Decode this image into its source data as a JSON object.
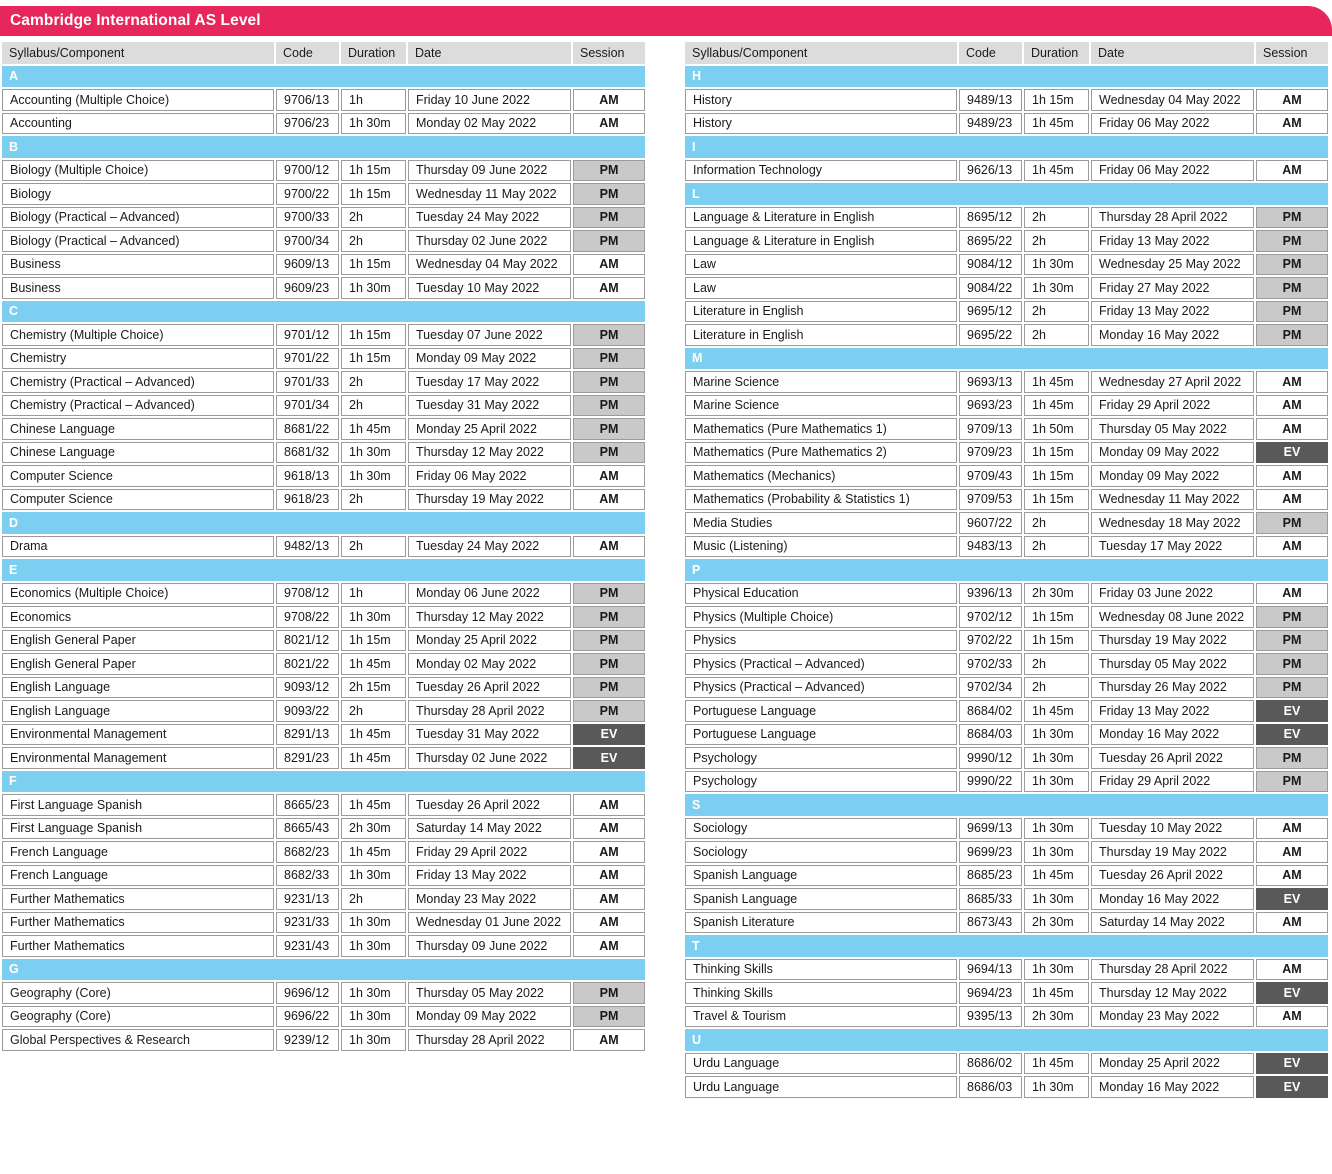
{
  "title": "Cambridge International AS Level",
  "columns": [
    "Syllabus/Component",
    "Code",
    "Duration",
    "Date",
    "Session"
  ],
  "colors": {
    "banner_pink": "#e7275b",
    "section_blue": "#7ccff1",
    "header_gray": "#dcdcdc",
    "pm_gray": "#c9c9c9",
    "ev_dark": "#595959",
    "border_gray": "#9b9b9b",
    "text": "#1a1a1a"
  },
  "left_table": {
    "sections": [
      {
        "letter": "A",
        "rows": [
          [
            "Accounting (Multiple Choice)",
            "9706/13",
            "1h",
            "Friday 10 June 2022",
            "AM"
          ],
          [
            "Accounting",
            "9706/23",
            "1h 30m",
            "Monday 02 May 2022",
            "AM"
          ]
        ]
      },
      {
        "letter": "B",
        "rows": [
          [
            "Biology (Multiple Choice)",
            "9700/12",
            "1h 15m",
            "Thursday 09 June 2022",
            "PM"
          ],
          [
            "Biology",
            "9700/22",
            "1h 15m",
            "Wednesday 11 May 2022",
            "PM"
          ],
          [
            "Biology (Practical – Advanced)",
            "9700/33",
            "2h",
            "Tuesday 24 May 2022",
            "PM"
          ],
          [
            "Biology (Practical – Advanced)",
            "9700/34",
            "2h",
            "Thursday 02 June 2022",
            "PM"
          ],
          [
            "Business",
            "9609/13",
            "1h 15m",
            "Wednesday 04 May 2022",
            "AM"
          ],
          [
            "Business",
            "9609/23",
            "1h 30m",
            "Tuesday 10 May 2022",
            "AM"
          ]
        ]
      },
      {
        "letter": "C",
        "rows": [
          [
            "Chemistry (Multiple Choice)",
            "9701/12",
            "1h 15m",
            "Tuesday 07 June 2022",
            "PM"
          ],
          [
            "Chemistry",
            "9701/22",
            "1h 15m",
            "Monday 09 May 2022",
            "PM"
          ],
          [
            "Chemistry (Practical – Advanced)",
            "9701/33",
            "2h",
            "Tuesday 17 May 2022",
            "PM"
          ],
          [
            "Chemistry (Practical – Advanced)",
            "9701/34",
            "2h",
            "Tuesday 31 May 2022",
            "PM"
          ],
          [
            "Chinese Language",
            "8681/22",
            "1h 45m",
            "Monday 25 April 2022",
            "PM"
          ],
          [
            "Chinese Language",
            "8681/32",
            "1h 30m",
            "Thursday 12 May 2022",
            "PM"
          ],
          [
            "Computer Science",
            "9618/13",
            "1h 30m",
            "Friday 06 May 2022",
            "AM"
          ],
          [
            "Computer Science",
            "9618/23",
            "2h",
            "Thursday 19 May 2022",
            "AM"
          ]
        ]
      },
      {
        "letter": "D",
        "rows": [
          [
            "Drama",
            "9482/13",
            "2h",
            "Tuesday 24 May 2022",
            "AM"
          ]
        ]
      },
      {
        "letter": "E",
        "rows": [
          [
            "Economics (Multiple Choice)",
            "9708/12",
            "1h",
            "Monday 06 June 2022",
            "PM"
          ],
          [
            "Economics",
            "9708/22",
            "1h 30m",
            "Thursday 12 May 2022",
            "PM"
          ],
          [
            "English General Paper",
            "8021/12",
            "1h 15m",
            "Monday 25 April 2022",
            "PM"
          ],
          [
            "English General Paper",
            "8021/22",
            "1h 45m",
            "Monday 02 May 2022",
            "PM"
          ],
          [
            "English Language",
            "9093/12",
            "2h 15m",
            "Tuesday 26 April 2022",
            "PM"
          ],
          [
            "English Language",
            "9093/22",
            "2h",
            "Thursday 28 April 2022",
            "PM"
          ],
          [
            "Environmental Management",
            "8291/13",
            "1h 45m",
            "Tuesday 31 May 2022",
            "EV"
          ],
          [
            "Environmental Management",
            "8291/23",
            "1h 45m",
            "Thursday 02 June 2022",
            "EV"
          ]
        ]
      },
      {
        "letter": "F",
        "rows": [
          [
            "First Language Spanish",
            "8665/23",
            "1h 45m",
            "Tuesday 26 April 2022",
            "AM"
          ],
          [
            "First Language Spanish",
            "8665/43",
            "2h 30m",
            "Saturday 14 May 2022",
            "AM"
          ],
          [
            "French Language",
            "8682/23",
            "1h 45m",
            "Friday 29 April 2022",
            "AM"
          ],
          [
            "French Language",
            "8682/33",
            "1h 30m",
            "Friday 13 May 2022",
            "AM"
          ],
          [
            "Further Mathematics",
            "9231/13",
            "2h",
            "Monday 23 May 2022",
            "AM"
          ],
          [
            "Further Mathematics",
            "9231/33",
            "1h 30m",
            "Wednesday 01 June 2022",
            "AM"
          ],
          [
            "Further Mathematics",
            "9231/43",
            "1h 30m",
            "Thursday 09 June 2022",
            "AM"
          ]
        ]
      },
      {
        "letter": "G",
        "rows": [
          [
            "Geography (Core)",
            "9696/12",
            "1h 30m",
            "Thursday 05 May 2022",
            "PM"
          ],
          [
            "Geography (Core)",
            "9696/22",
            "1h 30m",
            "Monday 09 May 2022",
            "PM"
          ],
          [
            "Global Perspectives & Research",
            "9239/12",
            "1h 30m",
            "Thursday 28 April 2022",
            "AM"
          ]
        ]
      }
    ]
  },
  "right_table": {
    "sections": [
      {
        "letter": "H",
        "rows": [
          [
            "History",
            "9489/13",
            "1h 15m",
            "Wednesday 04 May 2022",
            "AM"
          ],
          [
            "History",
            "9489/23",
            "1h 45m",
            "Friday 06 May 2022",
            "AM"
          ]
        ]
      },
      {
        "letter": "I",
        "rows": [
          [
            "Information Technology",
            "9626/13",
            "1h 45m",
            "Friday 06 May 2022",
            "AM"
          ]
        ]
      },
      {
        "letter": "L",
        "rows": [
          [
            "Language & Literature in English",
            "8695/12",
            "2h",
            "Thursday 28 April 2022",
            "PM"
          ],
          [
            "Language & Literature in English",
            "8695/22",
            "2h",
            "Friday 13 May 2022",
            "PM"
          ],
          [
            "Law",
            "9084/12",
            "1h 30m",
            "Wednesday 25 May 2022",
            "PM"
          ],
          [
            "Law",
            "9084/22",
            "1h 30m",
            "Friday 27 May 2022",
            "PM"
          ],
          [
            "Literature in English",
            "9695/12",
            "2h",
            "Friday 13 May 2022",
            "PM"
          ],
          [
            "Literature in English",
            "9695/22",
            "2h",
            "Monday 16 May 2022",
            "PM"
          ]
        ]
      },
      {
        "letter": "M",
        "rows": [
          [
            "Marine Science",
            "9693/13",
            "1h 45m",
            "Wednesday 27 April 2022",
            "AM"
          ],
          [
            "Marine Science",
            "9693/23",
            "1h 45m",
            "Friday 29 April 2022",
            "AM"
          ],
          [
            "Mathematics (Pure Mathematics 1)",
            "9709/13",
            "1h 50m",
            "Thursday 05 May 2022",
            "AM"
          ],
          [
            "Mathematics (Pure Mathematics 2)",
            "9709/23",
            "1h 15m",
            "Monday 09 May 2022",
            "EV"
          ],
          [
            "Mathematics (Mechanics)",
            "9709/43",
            "1h 15m",
            "Monday 09 May 2022",
            "AM"
          ],
          [
            "Mathematics (Probability & Statistics 1)",
            "9709/53",
            "1h 15m",
            "Wednesday 11 May 2022",
            "AM"
          ],
          [
            "Media Studies",
            "9607/22",
            "2h",
            "Wednesday 18 May 2022",
            "PM"
          ],
          [
            "Music (Listening)",
            "9483/13",
            "2h",
            "Tuesday 17 May 2022",
            "AM"
          ]
        ]
      },
      {
        "letter": "P",
        "rows": [
          [
            "Physical Education",
            "9396/13",
            "2h 30m",
            "Friday 03 June 2022",
            "AM"
          ],
          [
            "Physics (Multiple Choice)",
            "9702/12",
            "1h 15m",
            "Wednesday 08 June 2022",
            "PM"
          ],
          [
            "Physics",
            "9702/22",
            "1h 15m",
            "Thursday 19 May 2022",
            "PM"
          ],
          [
            "Physics (Practical – Advanced)",
            "9702/33",
            "2h",
            "Thursday 05 May 2022",
            "PM"
          ],
          [
            "Physics (Practical – Advanced)",
            "9702/34",
            "2h",
            "Thursday 26 May 2022",
            "PM"
          ],
          [
            "Portuguese Language",
            "8684/02",
            "1h 45m",
            "Friday 13 May 2022",
            "EV"
          ],
          [
            "Portuguese Language",
            "8684/03",
            "1h 30m",
            "Monday 16 May 2022",
            "EV"
          ],
          [
            "Psychology",
            "9990/12",
            "1h 30m",
            "Tuesday 26 April 2022",
            "PM"
          ],
          [
            "Psychology",
            "9990/22",
            "1h 30m",
            "Friday 29 April 2022",
            "PM"
          ]
        ]
      },
      {
        "letter": "S",
        "rows": [
          [
            "Sociology",
            "9699/13",
            "1h 30m",
            "Tuesday 10 May 2022",
            "AM"
          ],
          [
            "Sociology",
            "9699/23",
            "1h 30m",
            "Thursday 19 May 2022",
            "AM"
          ],
          [
            "Spanish Language",
            "8685/23",
            "1h 45m",
            "Tuesday 26 April 2022",
            "AM"
          ],
          [
            "Spanish Language",
            "8685/33",
            "1h 30m",
            "Monday 16 May 2022",
            "EV"
          ],
          [
            "Spanish Literature",
            "8673/43",
            "2h 30m",
            "Saturday 14 May 2022",
            "AM"
          ]
        ]
      },
      {
        "letter": "T",
        "rows": [
          [
            "Thinking Skills",
            "9694/13",
            "1h 30m",
            "Thursday 28 April 2022",
            "AM"
          ],
          [
            "Thinking Skills",
            "9694/23",
            "1h 45m",
            "Thursday 12 May 2022",
            "EV"
          ],
          [
            "Travel & Tourism",
            "9395/13",
            "2h 30m",
            "Monday 23 May 2022",
            "AM"
          ]
        ]
      },
      {
        "letter": "U",
        "rows": [
          [
            "Urdu Language",
            "8686/02",
            "1h 45m",
            "Monday 25 April 2022",
            "EV"
          ],
          [
            "Urdu Language",
            "8686/03",
            "1h 30m",
            "Monday 16 May 2022",
            "EV"
          ]
        ]
      }
    ]
  }
}
